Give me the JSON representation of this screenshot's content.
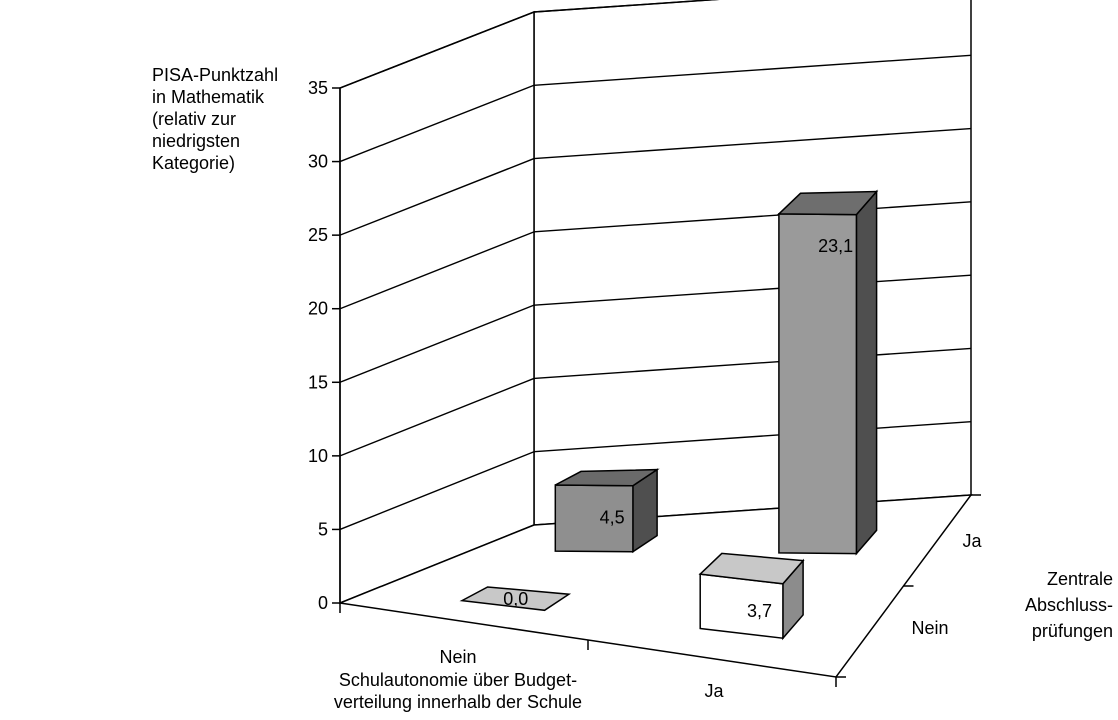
{
  "chart_data": {
    "type": "bar3d",
    "title": "",
    "y_axis": {
      "label": [
        "PISA-Punktzahl",
        "in Mathematik",
        "(relativ zur",
        "niedrigsten",
        "Kategorie)"
      ],
      "ticks": [
        "0",
        "5",
        "10",
        "15",
        "20",
        "25",
        "30",
        "35"
      ],
      "range": [
        0,
        35
      ]
    },
    "x_axis": {
      "label": [
        "Schulautonomie über Budget-",
        "verteilung innerhalb der Schule"
      ],
      "categories": [
        "Nein",
        "Ja"
      ]
    },
    "z_axis": {
      "label": [
        "Zentrale",
        "Abschluss-",
        "prüfungen"
      ],
      "categories": [
        "Nein",
        "Ja"
      ]
    },
    "bars": [
      {
        "x": "Nein",
        "z": "Nein",
        "value": 0.0,
        "label": "0,0"
      },
      {
        "x": "Ja",
        "z": "Nein",
        "value": 3.7,
        "label": "3,7"
      },
      {
        "x": "Nein",
        "z": "Ja",
        "value": 4.5,
        "label": "4,5"
      },
      {
        "x": "Ja",
        "z": "Ja",
        "value": 23.1,
        "label": "23,1"
      }
    ],
    "grid": true
  }
}
